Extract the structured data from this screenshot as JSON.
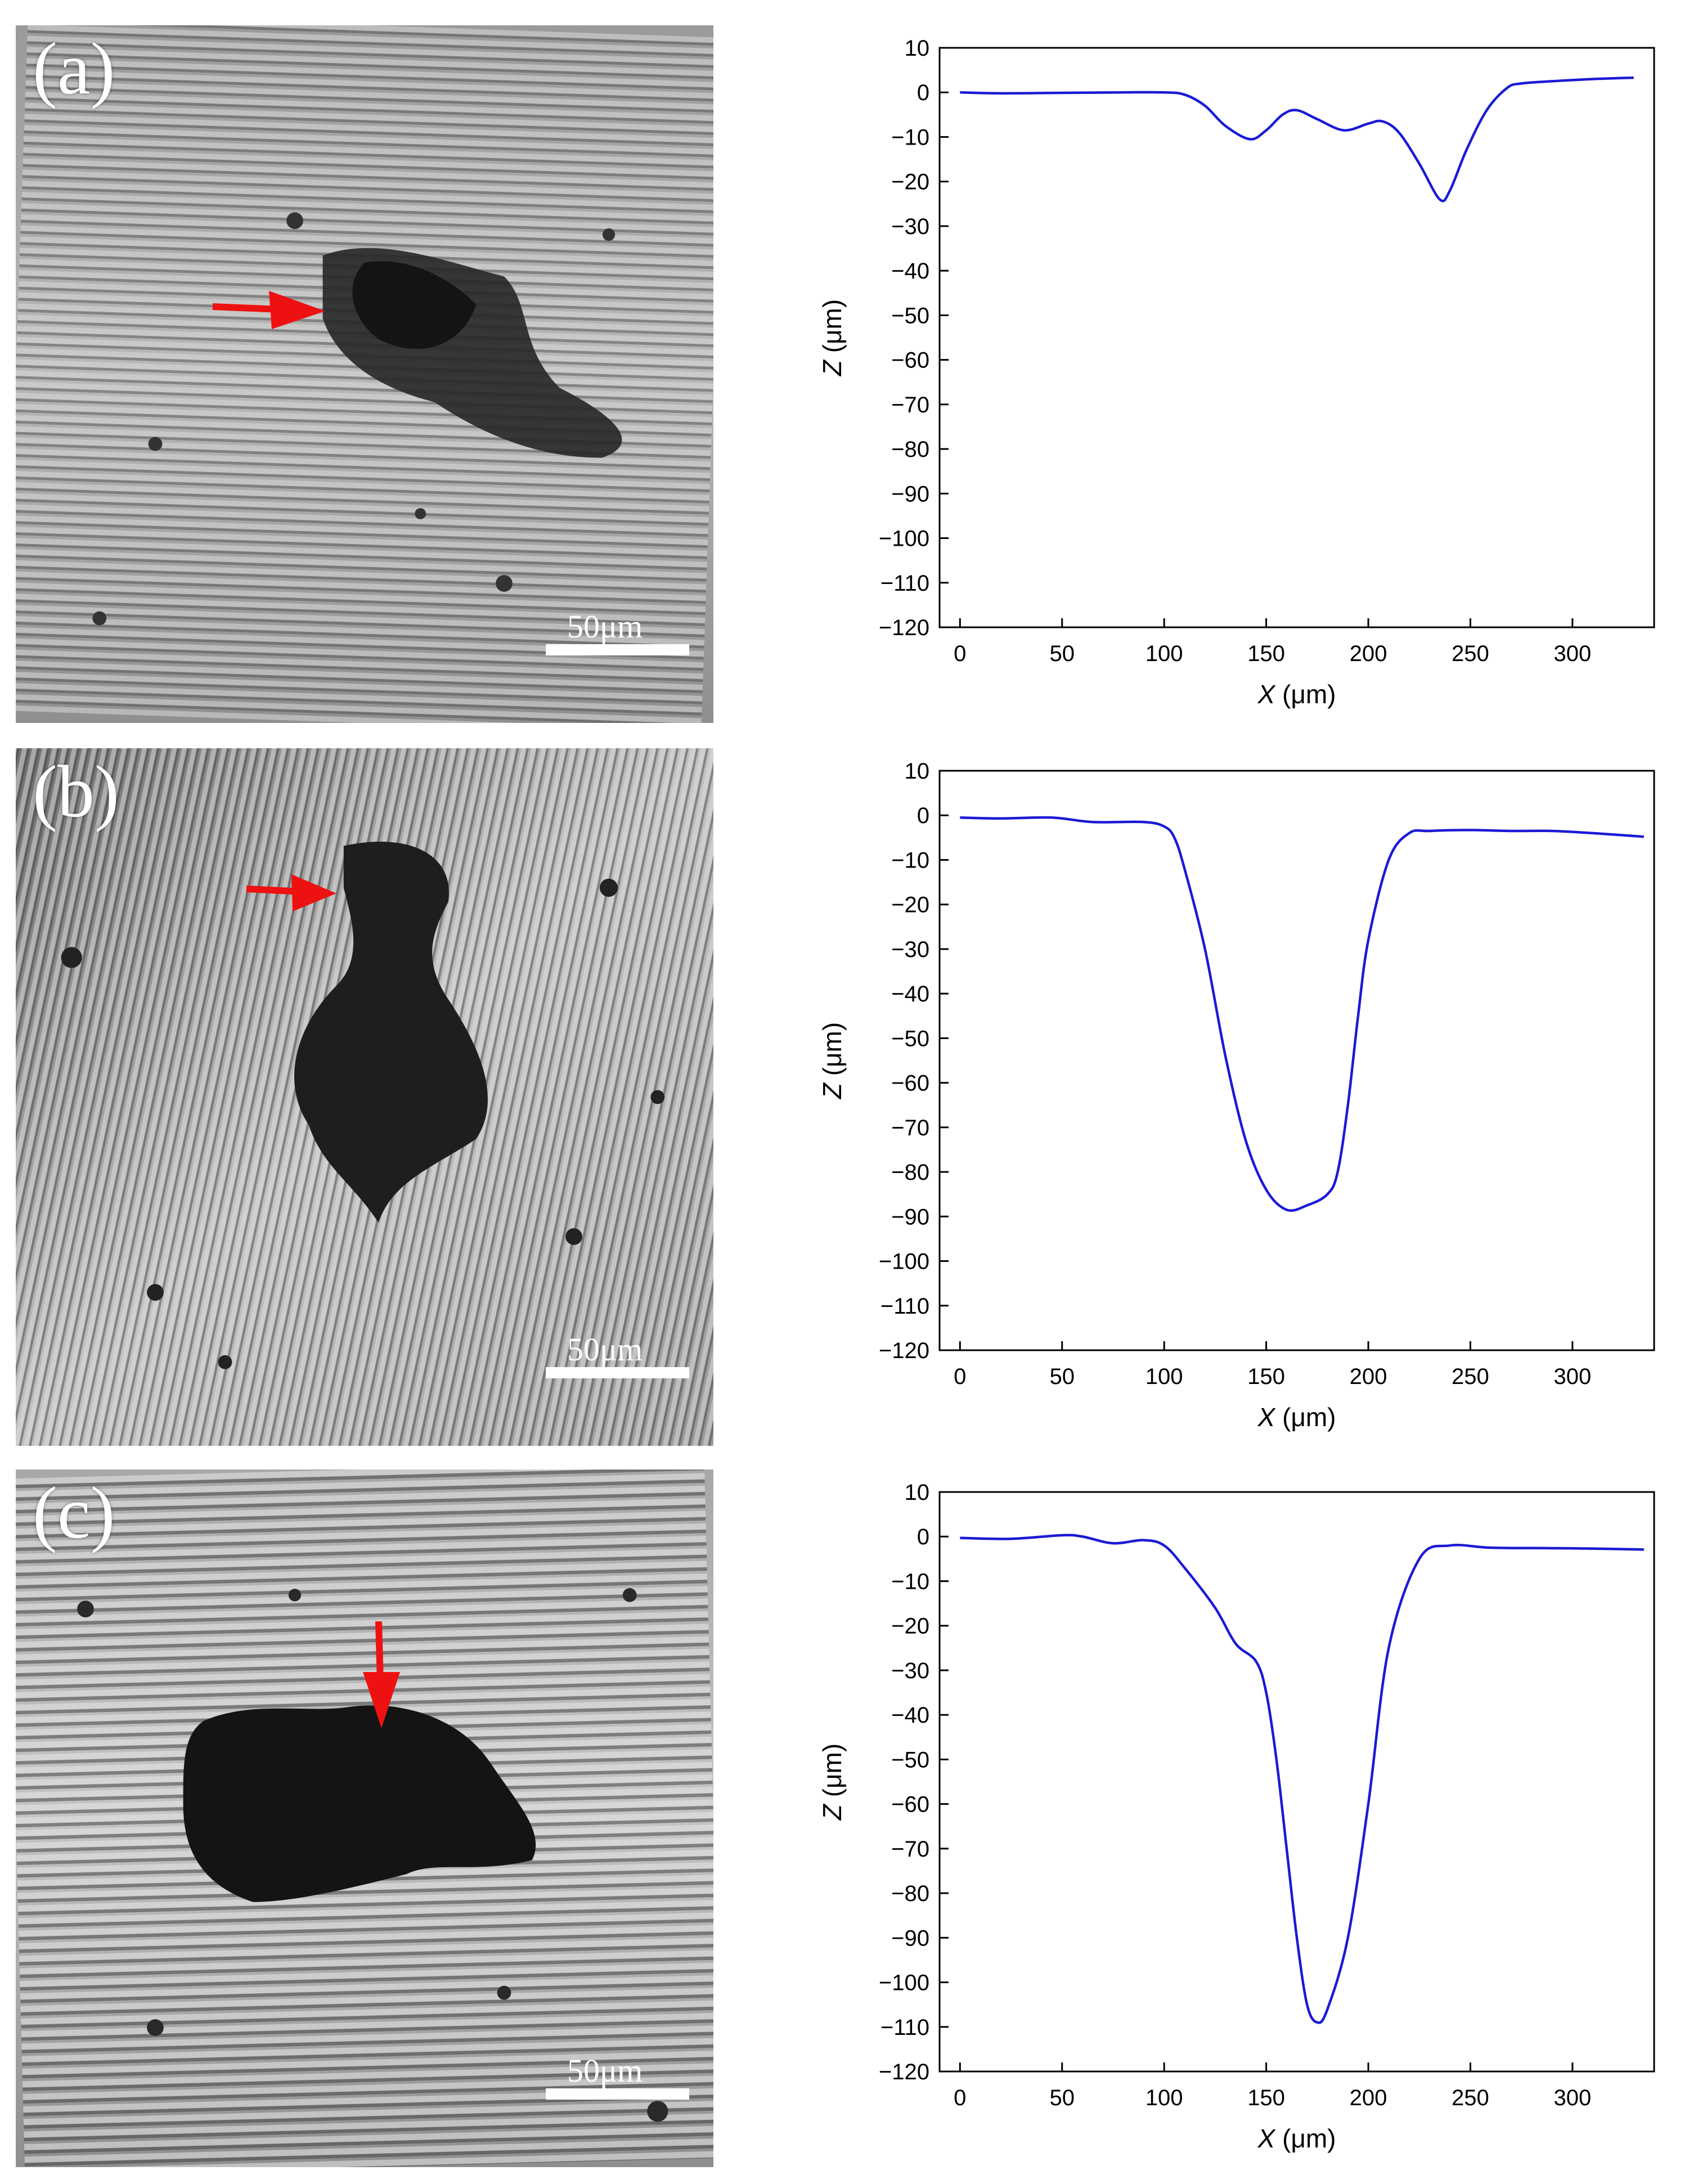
{
  "panels": [
    {
      "label": "(a)",
      "scale_bar": "50μm"
    },
    {
      "label": "(b)",
      "scale_bar": "50μm"
    },
    {
      "label": "(c)",
      "scale_bar": "50μm"
    }
  ],
  "chart_data": [
    {
      "type": "line",
      "title": "",
      "xlabel_var": "X",
      "xlabel_unit": " (μm)",
      "ylabel_var": "Z",
      "ylabel_unit": " (μm)",
      "xlim": [
        -10,
        340
      ],
      "ylim": [
        -120,
        10
      ],
      "xticks": [
        0,
        50,
        100,
        150,
        200,
        250,
        300
      ],
      "yticks": [
        10,
        0,
        -10,
        -20,
        -30,
        -40,
        -50,
        -60,
        -70,
        -80,
        -90,
        -100,
        -110,
        -120
      ],
      "line_color": "#1a1ad6",
      "series": [
        {
          "x": [
            0,
            20,
            50,
            80,
            100,
            110,
            120,
            130,
            142,
            150,
            158,
            165,
            175,
            188,
            200,
            207,
            215,
            225,
            235,
            240,
            248,
            258,
            268,
            275,
            290,
            310,
            330
          ],
          "y": [
            0,
            -0.2,
            -0.1,
            0,
            0,
            -0.5,
            -3,
            -7.5,
            -10.5,
            -8.5,
            -5,
            -4,
            -6,
            -8.5,
            -7,
            -6.5,
            -9,
            -16,
            -24,
            -22,
            -13,
            -4,
            1,
            2,
            2.5,
            3,
            3.3
          ]
        }
      ]
    },
    {
      "type": "line",
      "title": "",
      "xlabel_var": "X",
      "xlabel_unit": " (μm)",
      "ylabel_var": "Z",
      "ylabel_unit": " (μm)",
      "xlim": [
        -10,
        340
      ],
      "ylim": [
        -120,
        10
      ],
      "xticks": [
        0,
        50,
        100,
        150,
        200,
        250,
        300
      ],
      "yticks": [
        10,
        0,
        -10,
        -20,
        -30,
        -40,
        -50,
        -60,
        -70,
        -80,
        -90,
        -100,
        -110,
        -120
      ],
      "line_color": "#1a1ad6",
      "series": [
        {
          "x": [
            0,
            20,
            45,
            65,
            90,
            100,
            105,
            110,
            120,
            130,
            140,
            150,
            160,
            170,
            180,
            185,
            190,
            195,
            200,
            210,
            220,
            230,
            250,
            270,
            290,
            310,
            335
          ],
          "y": [
            -0.5,
            -0.7,
            -0.5,
            -1.5,
            -1.5,
            -2.5,
            -5,
            -12,
            -30,
            -54,
            -73,
            -84,
            -88.5,
            -87.5,
            -85,
            -80,
            -65,
            -45,
            -28,
            -10,
            -4,
            -3.5,
            -3.3,
            -3.5,
            -3.5,
            -4,
            -4.8
          ]
        }
      ]
    },
    {
      "type": "line",
      "title": "",
      "xlabel_var": "X",
      "xlabel_unit": " (μm)",
      "ylabel_var": "Z",
      "ylabel_unit": " (μm)",
      "xlim": [
        -10,
        340
      ],
      "ylim": [
        -120,
        10
      ],
      "xticks": [
        0,
        50,
        100,
        150,
        200,
        250,
        300
      ],
      "yticks": [
        10,
        0,
        -10,
        -20,
        -30,
        -40,
        -50,
        -60,
        -70,
        -80,
        -90,
        -100,
        -110,
        -120
      ],
      "line_color": "#1a1ad6",
      "series": [
        {
          "x": [
            0,
            25,
            50,
            60,
            75,
            90,
            100,
            110,
            125,
            135,
            145,
            150,
            155,
            160,
            165,
            170,
            175,
            180,
            190,
            200,
            210,
            225,
            240,
            260,
            290,
            310,
            335
          ],
          "y": [
            -0.3,
            -0.5,
            0.3,
            0,
            -1.5,
            -0.8,
            -2,
            -7,
            -16,
            -24,
            -28,
            -35,
            -50,
            -70,
            -90,
            -105,
            -109,
            -106,
            -90,
            -60,
            -25,
            -5,
            -2,
            -2.5,
            -2.6,
            -2.7,
            -2.9
          ]
        }
      ]
    }
  ]
}
